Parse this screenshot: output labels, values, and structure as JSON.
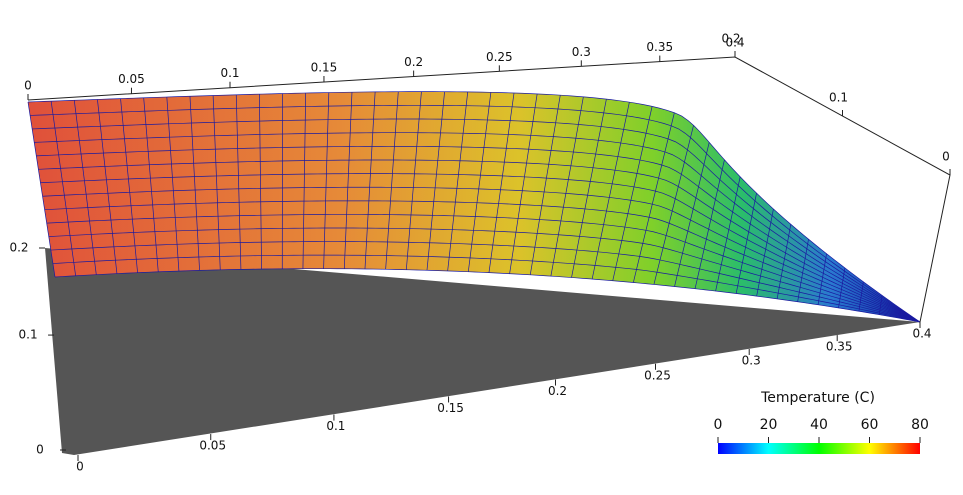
{
  "chart_data": {
    "type": "surface",
    "axes": [
      {
        "lim": [
          0,
          0.4
        ],
        "ticks": [
          0,
          0.05,
          0.1,
          0.15,
          0.2,
          0.25,
          0.3,
          0.35,
          0.4
        ]
      },
      {
        "lim": [
          0.2,
          0
        ],
        "ticks": [
          0.2,
          0.1,
          0
        ]
      },
      {
        "lim": [
          0,
          0.2
        ],
        "ticks": [
          0,
          0.1,
          0.2
        ]
      },
      {
        "lim": [
          0,
          0.4
        ],
        "ticks": [
          0,
          0.05,
          0.1,
          0.15,
          0.2,
          0.25,
          0.3,
          0.35,
          0.4
        ]
      }
    ],
    "colorbar": {
      "title": "Temperature (C)",
      "lim": [
        0,
        80
      ],
      "ticks": [
        0,
        20,
        40,
        60,
        80
      ],
      "colors": [
        "#0000ff",
        "#00ffff",
        "#00ff00",
        "#ffff00",
        "#ff0000"
      ]
    }
  }
}
